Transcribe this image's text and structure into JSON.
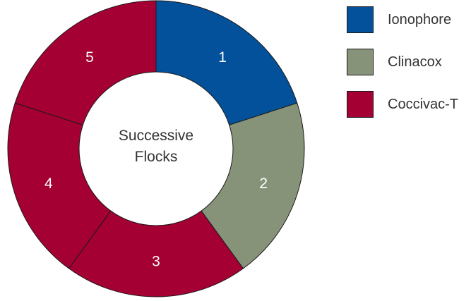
{
  "chart_data": {
    "type": "pie",
    "donut": true,
    "center_text": [
      "Successive",
      "Flocks"
    ],
    "slices": [
      {
        "label": "1",
        "value": 1,
        "category": "Ionophore",
        "color": "#03519a"
      },
      {
        "label": "2",
        "value": 1,
        "category": "Clinacox",
        "color": "#879379"
      },
      {
        "label": "3",
        "value": 1,
        "category": "Coccivac-T",
        "color": "#a50034"
      },
      {
        "label": "4",
        "value": 1,
        "category": "Coccivac-T",
        "color": "#a50034"
      },
      {
        "label": "5",
        "value": 1,
        "category": "Coccivac-T",
        "color": "#a50034"
      }
    ],
    "legend": [
      {
        "label": "Ionophore",
        "color": "#03519a"
      },
      {
        "label": "Clinacox",
        "color": "#879379"
      },
      {
        "label": "Coccivac-T",
        "color": "#a50034"
      }
    ],
    "legend_position": "top-right"
  }
}
